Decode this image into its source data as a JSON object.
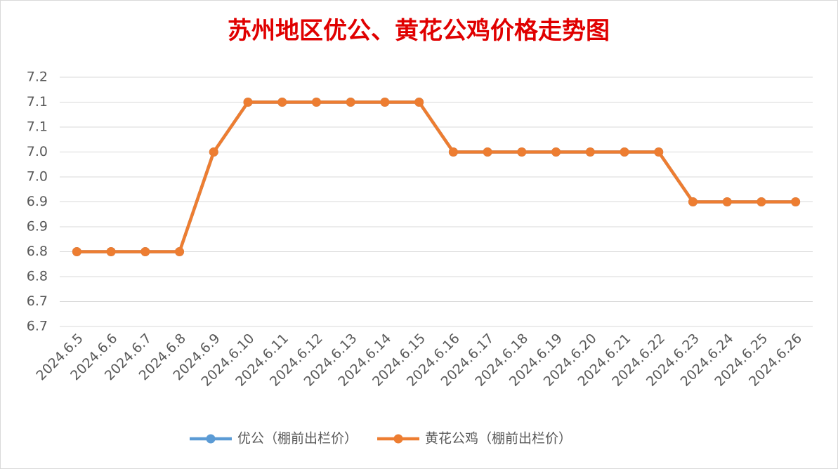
{
  "chart_data": {
    "type": "line",
    "title": "苏州地区优公、黄花公鸡价格走势图",
    "categories": [
      "2024.6.5",
      "2024.6.6",
      "2024.6.7",
      "2024.6.8",
      "2024.6.9",
      "2024.6.10",
      "2024.6.11",
      "2024.6.12",
      "2024.6.13",
      "2024.6.14",
      "2024.6.15",
      "2024.6.16",
      "2024.6.17",
      "2024.6.18",
      "2024.6.19",
      "2024.6.20",
      "2024.6.21",
      "2024.6.22",
      "2024.6.23",
      "2024.6.24",
      "2024.6.25",
      "2024.6.26"
    ],
    "series": [
      {
        "name": "优公（棚前出栏价）",
        "color": "#5b9bd5",
        "values": [
          6.8,
          6.8,
          6.8,
          6.8,
          7.0,
          7.1,
          7.1,
          7.1,
          7.1,
          7.1,
          7.1,
          7.0,
          7.0,
          7.0,
          7.0,
          7.0,
          7.0,
          7.0,
          6.9,
          6.9,
          6.9,
          6.9
        ]
      },
      {
        "name": "黄花公鸡（棚前出栏价）",
        "color": "#ed7d31",
        "values": [
          6.8,
          6.8,
          6.8,
          6.8,
          7.0,
          7.1,
          7.1,
          7.1,
          7.1,
          7.1,
          7.1,
          7.0,
          7.0,
          7.0,
          7.0,
          7.0,
          7.0,
          7.0,
          6.9,
          6.9,
          6.9,
          6.9
        ]
      }
    ],
    "ylim": [
      6.65,
      7.15
    ],
    "yticks": [
      {
        "value": 6.65,
        "label": "6.7"
      },
      6.7,
      {
        "value": 6.75,
        "label": "6.8"
      },
      6.8,
      {
        "value": 6.85,
        "label": "6.9"
      },
      6.9,
      {
        "value": 6.95,
        "label": "7.0"
      },
      {
        "value": 7,
        "label": "7.0"
      },
      {
        "value": 7.05,
        "label": "7.1"
      },
      7.1,
      {
        "value": 7.15,
        "label": "7.2"
      }
    ],
    "grid": true,
    "legend": "bottom"
  }
}
